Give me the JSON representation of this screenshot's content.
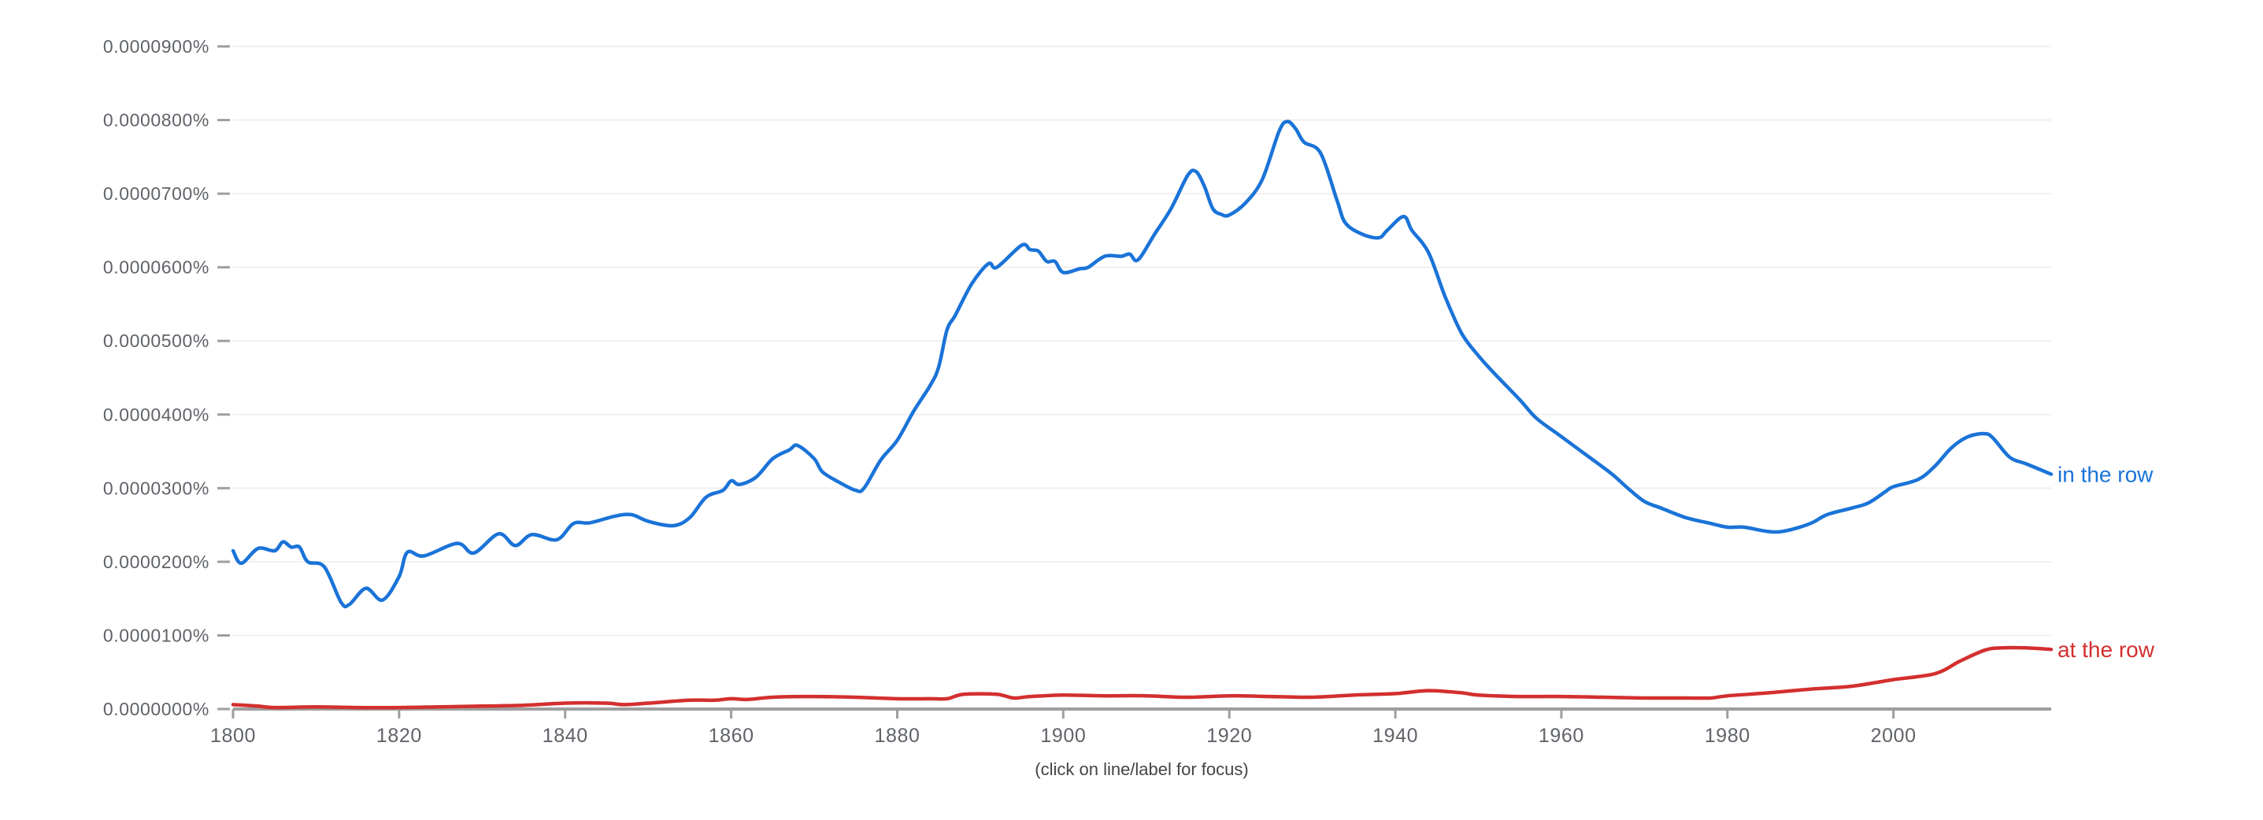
{
  "caption": "(click on line/label for focus)",
  "colors": {
    "series_in_the_row": "#1a73d8",
    "series_at_the_row": "#d32f2f",
    "axis": "#9e9e9e",
    "grid": "#efefef",
    "tick_text": "#5f6368"
  },
  "chart_data": {
    "type": "line",
    "title": "",
    "xlabel": "",
    "ylabel": "",
    "xlim": [
      1800,
      2019
    ],
    "ylim": [
      0,
      9e-05
    ],
    "grid": true,
    "legend_position": "inline-right",
    "x_ticks": [
      1800,
      1820,
      1840,
      1860,
      1880,
      1900,
      1920,
      1940,
      1960,
      1980,
      2000
    ],
    "x_tick_labels": [
      "1800",
      "1820",
      "1840",
      "1860",
      "1880",
      "1900",
      "1920",
      "1940",
      "1960",
      "1980",
      "2000"
    ],
    "y_ticks": [
      0,
      1e-05,
      2e-05,
      3e-05,
      4e-05,
      5e-05,
      6e-05,
      7e-05,
      8e-05,
      9e-05
    ],
    "y_tick_labels": [
      "0.0000000%",
      "0.0000100%",
      "0.0000200%",
      "0.0000300%",
      "0.0000400%",
      "0.0000500%",
      "0.0000600%",
      "0.0000700%",
      "0.0000800%",
      "0.0000900%"
    ],
    "y_unit_note": "values are percent ×1e-5 (e.g. 7.98 = 0.0000798%)",
    "series": [
      {
        "name": "in the row",
        "color": "#1a73d8",
        "x": [
          1800,
          1801,
          1803,
          1805,
          1806,
          1807,
          1808,
          1809,
          1811,
          1813,
          1814,
          1816,
          1818,
          1820,
          1821,
          1823,
          1827,
          1829,
          1832,
          1834,
          1836,
          1839,
          1841,
          1843,
          1846,
          1848,
          1850,
          1853,
          1855,
          1857,
          1859,
          1860,
          1861,
          1863,
          1865,
          1867,
          1868,
          1870,
          1871,
          1873,
          1875,
          1876,
          1878,
          1880,
          1882,
          1884,
          1885,
          1886,
          1887,
          1889,
          1891,
          1892,
          1895,
          1896,
          1897,
          1898,
          1899,
          1900,
          1902,
          1903,
          1905,
          1907,
          1908,
          1909,
          1911,
          1913,
          1915,
          1916,
          1917,
          1918,
          1919,
          1920,
          1922,
          1924,
          1926,
          1927,
          1928,
          1929,
          1931,
          1933,
          1934,
          1936,
          1938,
          1939,
          1941,
          1942,
          1944,
          1946,
          1948,
          1950,
          1952,
          1955,
          1957,
          1960,
          1963,
          1966,
          1968,
          1970,
          1972,
          1975,
          1978,
          1980,
          1982,
          1985,
          1987,
          1990,
          1992,
          1995,
          1997,
          1999,
          2000,
          2003,
          2005,
          2007,
          2009,
          2011,
          2012,
          2014,
          2016,
          2019
        ],
        "values": [
          2.15,
          1.98,
          2.18,
          2.15,
          2.27,
          2.2,
          2.2,
          2.0,
          1.93,
          1.45,
          1.42,
          1.64,
          1.48,
          1.8,
          2.13,
          2.08,
          2.25,
          2.12,
          2.38,
          2.22,
          2.37,
          2.3,
          2.52,
          2.53,
          2.62,
          2.64,
          2.55,
          2.49,
          2.6,
          2.88,
          2.97,
          3.1,
          3.05,
          3.15,
          3.4,
          3.52,
          3.58,
          3.4,
          3.22,
          3.08,
          2.97,
          3.0,
          3.38,
          3.65,
          4.05,
          4.4,
          4.65,
          5.15,
          5.35,
          5.78,
          6.05,
          6.0,
          6.3,
          6.24,
          6.22,
          6.08,
          6.08,
          5.93,
          5.98,
          6.0,
          6.15,
          6.15,
          6.18,
          6.1,
          6.45,
          6.8,
          7.25,
          7.3,
          7.1,
          6.8,
          6.72,
          6.71,
          6.88,
          7.2,
          7.85,
          7.98,
          7.88,
          7.7,
          7.55,
          6.9,
          6.6,
          6.45,
          6.4,
          6.5,
          6.69,
          6.5,
          6.2,
          5.6,
          5.1,
          4.8,
          4.55,
          4.2,
          3.95,
          3.7,
          3.45,
          3.2,
          3.0,
          2.82,
          2.73,
          2.6,
          2.52,
          2.47,
          2.47,
          2.41,
          2.42,
          2.52,
          2.64,
          2.73,
          2.8,
          2.95,
          3.02,
          3.12,
          3.3,
          3.55,
          3.7,
          3.74,
          3.68,
          3.42,
          3.33,
          3.19
        ],
        "value_scale": 1e-07
      },
      {
        "name": "at the row",
        "color": "#d32f2f",
        "x": [
          1800,
          1803,
          1805,
          1810,
          1815,
          1820,
          1825,
          1830,
          1835,
          1840,
          1845,
          1847,
          1850,
          1855,
          1858,
          1860,
          1862,
          1865,
          1870,
          1875,
          1880,
          1884,
          1886,
          1888,
          1892,
          1894,
          1896,
          1900,
          1905,
          1910,
          1915,
          1920,
          1925,
          1930,
          1935,
          1940,
          1944,
          1948,
          1950,
          1955,
          1960,
          1965,
          1970,
          1975,
          1978,
          1980,
          1985,
          1990,
          1995,
          2000,
          2005,
          2008,
          2011,
          2013,
          2016,
          2019
        ],
        "values": [
          0.06,
          0.04,
          0.02,
          0.03,
          0.02,
          0.02,
          0.03,
          0.04,
          0.05,
          0.08,
          0.08,
          0.06,
          0.08,
          0.12,
          0.12,
          0.14,
          0.13,
          0.16,
          0.17,
          0.16,
          0.14,
          0.14,
          0.14,
          0.2,
          0.2,
          0.15,
          0.17,
          0.19,
          0.18,
          0.18,
          0.16,
          0.18,
          0.17,
          0.16,
          0.19,
          0.21,
          0.25,
          0.22,
          0.19,
          0.17,
          0.17,
          0.16,
          0.15,
          0.15,
          0.15,
          0.18,
          0.22,
          0.27,
          0.31,
          0.4,
          0.48,
          0.65,
          0.8,
          0.83,
          0.83,
          0.81
        ],
        "value_scale": 1e-07
      }
    ]
  }
}
